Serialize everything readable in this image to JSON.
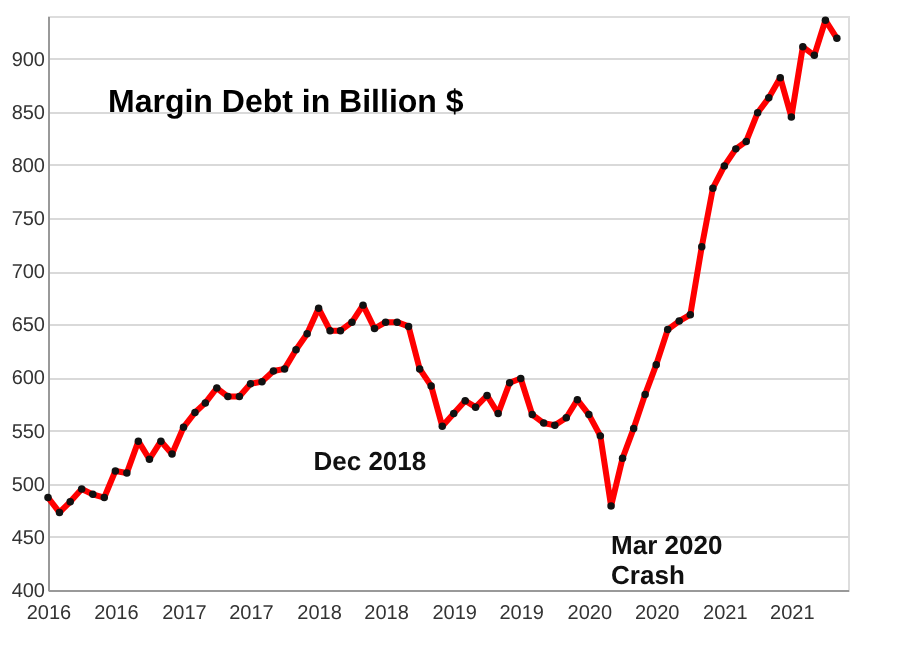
{
  "chart_data": {
    "type": "line",
    "title": "Margin Debt in Billion $",
    "x": [
      "2016-01",
      "2016-02",
      "2016-03",
      "2016-04",
      "2016-05",
      "2016-06",
      "2016-07",
      "2016-08",
      "2016-09",
      "2016-10",
      "2016-11",
      "2016-12",
      "2017-01",
      "2017-02",
      "2017-03",
      "2017-04",
      "2017-05",
      "2017-06",
      "2017-07",
      "2017-08",
      "2017-09",
      "2017-10",
      "2017-11",
      "2017-12",
      "2018-01",
      "2018-02",
      "2018-03",
      "2018-04",
      "2018-05",
      "2018-06",
      "2018-07",
      "2018-08",
      "2018-09",
      "2018-10",
      "2018-11",
      "2018-12",
      "2019-01",
      "2019-02",
      "2019-03",
      "2019-04",
      "2019-05",
      "2019-06",
      "2019-07",
      "2019-08",
      "2019-09",
      "2019-10",
      "2019-11",
      "2019-12",
      "2020-01",
      "2020-02",
      "2020-03",
      "2020-04",
      "2020-05",
      "2020-06",
      "2020-07",
      "2020-08",
      "2020-09",
      "2020-10",
      "2020-11",
      "2020-12",
      "2021-01",
      "2021-02",
      "2021-03",
      "2021-04",
      "2021-05",
      "2021-06",
      "2021-07",
      "2021-08",
      "2021-09",
      "2021-10",
      "2021-11"
    ],
    "series": [
      {
        "color": "#ff0000",
        "values": [
          487,
          473,
          483,
          495,
          490,
          487,
          512,
          510,
          540,
          523,
          540,
          528,
          553,
          567,
          576,
          590,
          582,
          582,
          594,
          596,
          606,
          608,
          626,
          641,
          665,
          644,
          644,
          652,
          668,
          646,
          652,
          652,
          648,
          608,
          592,
          554,
          566,
          578,
          572,
          583,
          566,
          595,
          599,
          565,
          557,
          555,
          562,
          579,
          565,
          545,
          479,
          524,
          552,
          584,
          612,
          645,
          653,
          659,
          723,
          778,
          799,
          815,
          822,
          849,
          863,
          882,
          845,
          911,
          903,
          936,
          919
        ]
      }
    ],
    "xlim": [
      "2016-01",
      "2021-12"
    ],
    "xticks": [
      {
        "value": "2016-01",
        "label": "2016"
      },
      {
        "value": "2016-07",
        "label": "2016"
      },
      {
        "value": "2017-01",
        "label": "2017"
      },
      {
        "value": "2017-07",
        "label": "2017"
      },
      {
        "value": "2018-01",
        "label": "2018"
      },
      {
        "value": "2018-07",
        "label": "2018"
      },
      {
        "value": "2019-01",
        "label": "2019"
      },
      {
        "value": "2019-07",
        "label": "2019"
      },
      {
        "value": "2020-01",
        "label": "2020"
      },
      {
        "value": "2020-07",
        "label": "2020"
      },
      {
        "value": "2021-01",
        "label": "2021"
      },
      {
        "value": "2021-07",
        "label": "2021"
      }
    ],
    "ylim": [
      400,
      940
    ],
    "yticks": [
      400,
      450,
      500,
      550,
      600,
      650,
      700,
      750,
      800,
      850,
      900
    ],
    "grid": "y",
    "marker": "circle",
    "line_style": "solid",
    "annotations": [
      {
        "text": "Dec 2018",
        "x": "2018-12",
        "y": 554
      },
      {
        "text": "Mar 2020\nCrash",
        "x": "2020-03",
        "y": 479
      }
    ]
  }
}
